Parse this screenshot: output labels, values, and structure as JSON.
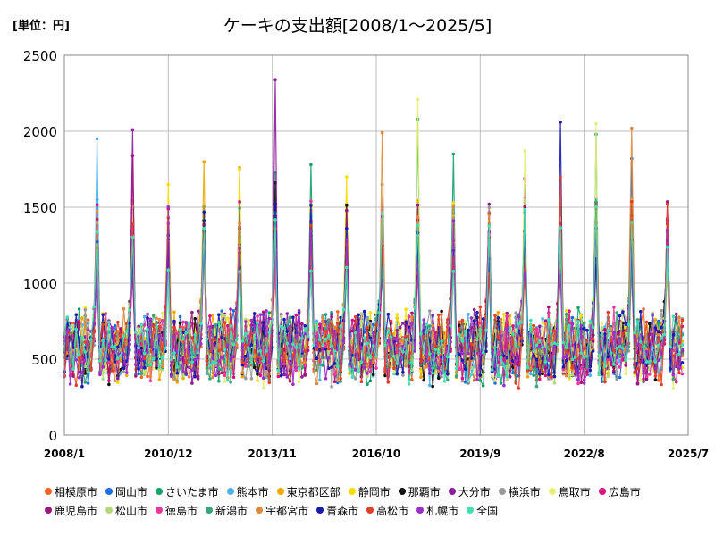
{
  "unit_label": "[単位：円]",
  "chart_data": {
    "type": "line",
    "title": "ケーキの支出額[2008/1～2025/5]",
    "xlabel": "",
    "ylabel": "",
    "ylim": [
      0,
      2500
    ],
    "y_ticks": [
      0,
      500,
      1000,
      1500,
      2000,
      2500
    ],
    "x_start": "2008/1",
    "x_end": "2025/5",
    "x_ticks": [
      "2008/1",
      "2010/12",
      "2013/11",
      "2016/10",
      "2019/9",
      "2022/8",
      "2025/7"
    ],
    "grid": true,
    "legend_position": "bottom",
    "baseline_range": [
      450,
      700
    ],
    "peak_month": 12,
    "series": [
      {
        "name": "相模原市",
        "color": "#f26522",
        "dec_peaks": [
          null,
          null,
          null,
          null,
          null,
          null,
          null,
          null,
          null,
          null,
          null,
          null,
          null,
          null,
          null,
          null,
          null
        ]
      },
      {
        "name": "岡山市",
        "color": "#1a6ee0",
        "dec_peaks": [
          1550,
          1500,
          1400,
          1300,
          1280,
          1440,
          1350,
          1480,
          1480,
          1420,
          1460,
          1250,
          1530,
          1400,
          1550,
          1820,
          null
        ]
      },
      {
        "name": "さいたま市",
        "color": "#16a06a",
        "dec_peaks": [
          null,
          1420,
          null,
          null,
          null,
          1730,
          1780,
          null,
          null,
          2080,
          1850,
          null,
          1560,
          null,
          1980,
          1500,
          null
        ]
      },
      {
        "name": "熊本市",
        "color": "#4fb3ea",
        "dec_peaks": [
          1950,
          null,
          null,
          null,
          null,
          null,
          null,
          null,
          null,
          null,
          null,
          null,
          null,
          null,
          null,
          null,
          null
        ]
      },
      {
        "name": "東京都区部",
        "color": "#f0a800",
        "dec_peaks": [
          null,
          null,
          null,
          1800,
          1760,
          null,
          null,
          null,
          null,
          null,
          null,
          null,
          null,
          null,
          null,
          null,
          null
        ]
      },
      {
        "name": "静岡市",
        "color": "#f5e000",
        "dec_peaks": [
          null,
          null,
          1650,
          null,
          1750,
          null,
          null,
          1700,
          null,
          null,
          null,
          null,
          null,
          null,
          null,
          null,
          null
        ]
      },
      {
        "name": "那覇市",
        "color": "#111111",
        "dec_peaks": [
          null,
          null,
          null,
          null,
          null,
          1660,
          null,
          null,
          null,
          null,
          null,
          null,
          null,
          null,
          null,
          null,
          null
        ]
      },
      {
        "name": "大分市",
        "color": "#8e1a9e",
        "dec_peaks": [
          null,
          2010,
          null,
          null,
          null,
          2340,
          null,
          null,
          1650,
          null,
          null,
          null,
          1690,
          null,
          null,
          null,
          null
        ]
      },
      {
        "name": "横浜市",
        "color": "#999999",
        "dec_peaks": [
          null,
          null,
          null,
          null,
          null,
          null,
          null,
          1060,
          null,
          null,
          null,
          null,
          null,
          null,
          null,
          null,
          null
        ]
      },
      {
        "name": "鳥取市",
        "color": "#e5ef7a",
        "dec_peaks": [
          null,
          null,
          null,
          null,
          null,
          null,
          null,
          null,
          1820,
          2210,
          null,
          null,
          1870,
          null,
          2050,
          null,
          null
        ]
      },
      {
        "name": "広島市",
        "color": "#d6137f",
        "dec_peaks": [
          null,
          null,
          null,
          null,
          null,
          null,
          null,
          null,
          null,
          null,
          null,
          null,
          null,
          null,
          null,
          null,
          null
        ]
      },
      {
        "name": "鹿児島市",
        "color": "#a0157a",
        "dec_peaks": [
          null,
          1840,
          null,
          null,
          null,
          null,
          null,
          null,
          null,
          null,
          null,
          null,
          null,
          null,
          null,
          null,
          null
        ]
      },
      {
        "name": "松山市",
        "color": "#b5d97a",
        "dec_peaks": [
          null,
          null,
          null,
          null,
          null,
          null,
          null,
          null,
          null,
          null,
          null,
          null,
          null,
          null,
          null,
          null,
          null
        ]
      },
      {
        "name": "徳島市",
        "color": "#e8389b",
        "dec_peaks": [
          null,
          null,
          null,
          null,
          null,
          null,
          null,
          null,
          null,
          null,
          null,
          null,
          null,
          null,
          null,
          null,
          null
        ]
      },
      {
        "name": "新潟市",
        "color": "#3aa37a",
        "dec_peaks": [
          null,
          null,
          null,
          null,
          null,
          null,
          null,
          null,
          null,
          null,
          null,
          null,
          null,
          null,
          null,
          null,
          null
        ]
      },
      {
        "name": "宇都宮市",
        "color": "#e08a3a",
        "dec_peaks": [
          null,
          null,
          null,
          null,
          null,
          null,
          null,
          null,
          1990,
          null,
          null,
          null,
          null,
          null,
          null,
          2020,
          null
        ]
      },
      {
        "name": "青森市",
        "color": "#1a1ab0",
        "dec_peaks": [
          null,
          null,
          null,
          null,
          null,
          null,
          null,
          null,
          null,
          null,
          null,
          null,
          null,
          2060,
          null,
          null,
          null
        ]
      },
      {
        "name": "高松市",
        "color": "#e0402a",
        "dec_peaks": [
          null,
          null,
          null,
          null,
          null,
          null,
          null,
          null,
          null,
          null,
          null,
          null,
          null,
          1700,
          null,
          null,
          null
        ]
      },
      {
        "name": "札幌市",
        "color": "#9b30c8",
        "dec_peaks": [
          null,
          null,
          null,
          null,
          null,
          null,
          null,
          null,
          null,
          null,
          null,
          null,
          null,
          null,
          null,
          null,
          null
        ]
      },
      {
        "name": "全国",
        "color": "#40e0b0",
        "dec_peaks": [
          null,
          null,
          null,
          null,
          null,
          null,
          null,
          null,
          null,
          null,
          null,
          null,
          null,
          null,
          null,
          null,
          null
        ]
      }
    ]
  }
}
